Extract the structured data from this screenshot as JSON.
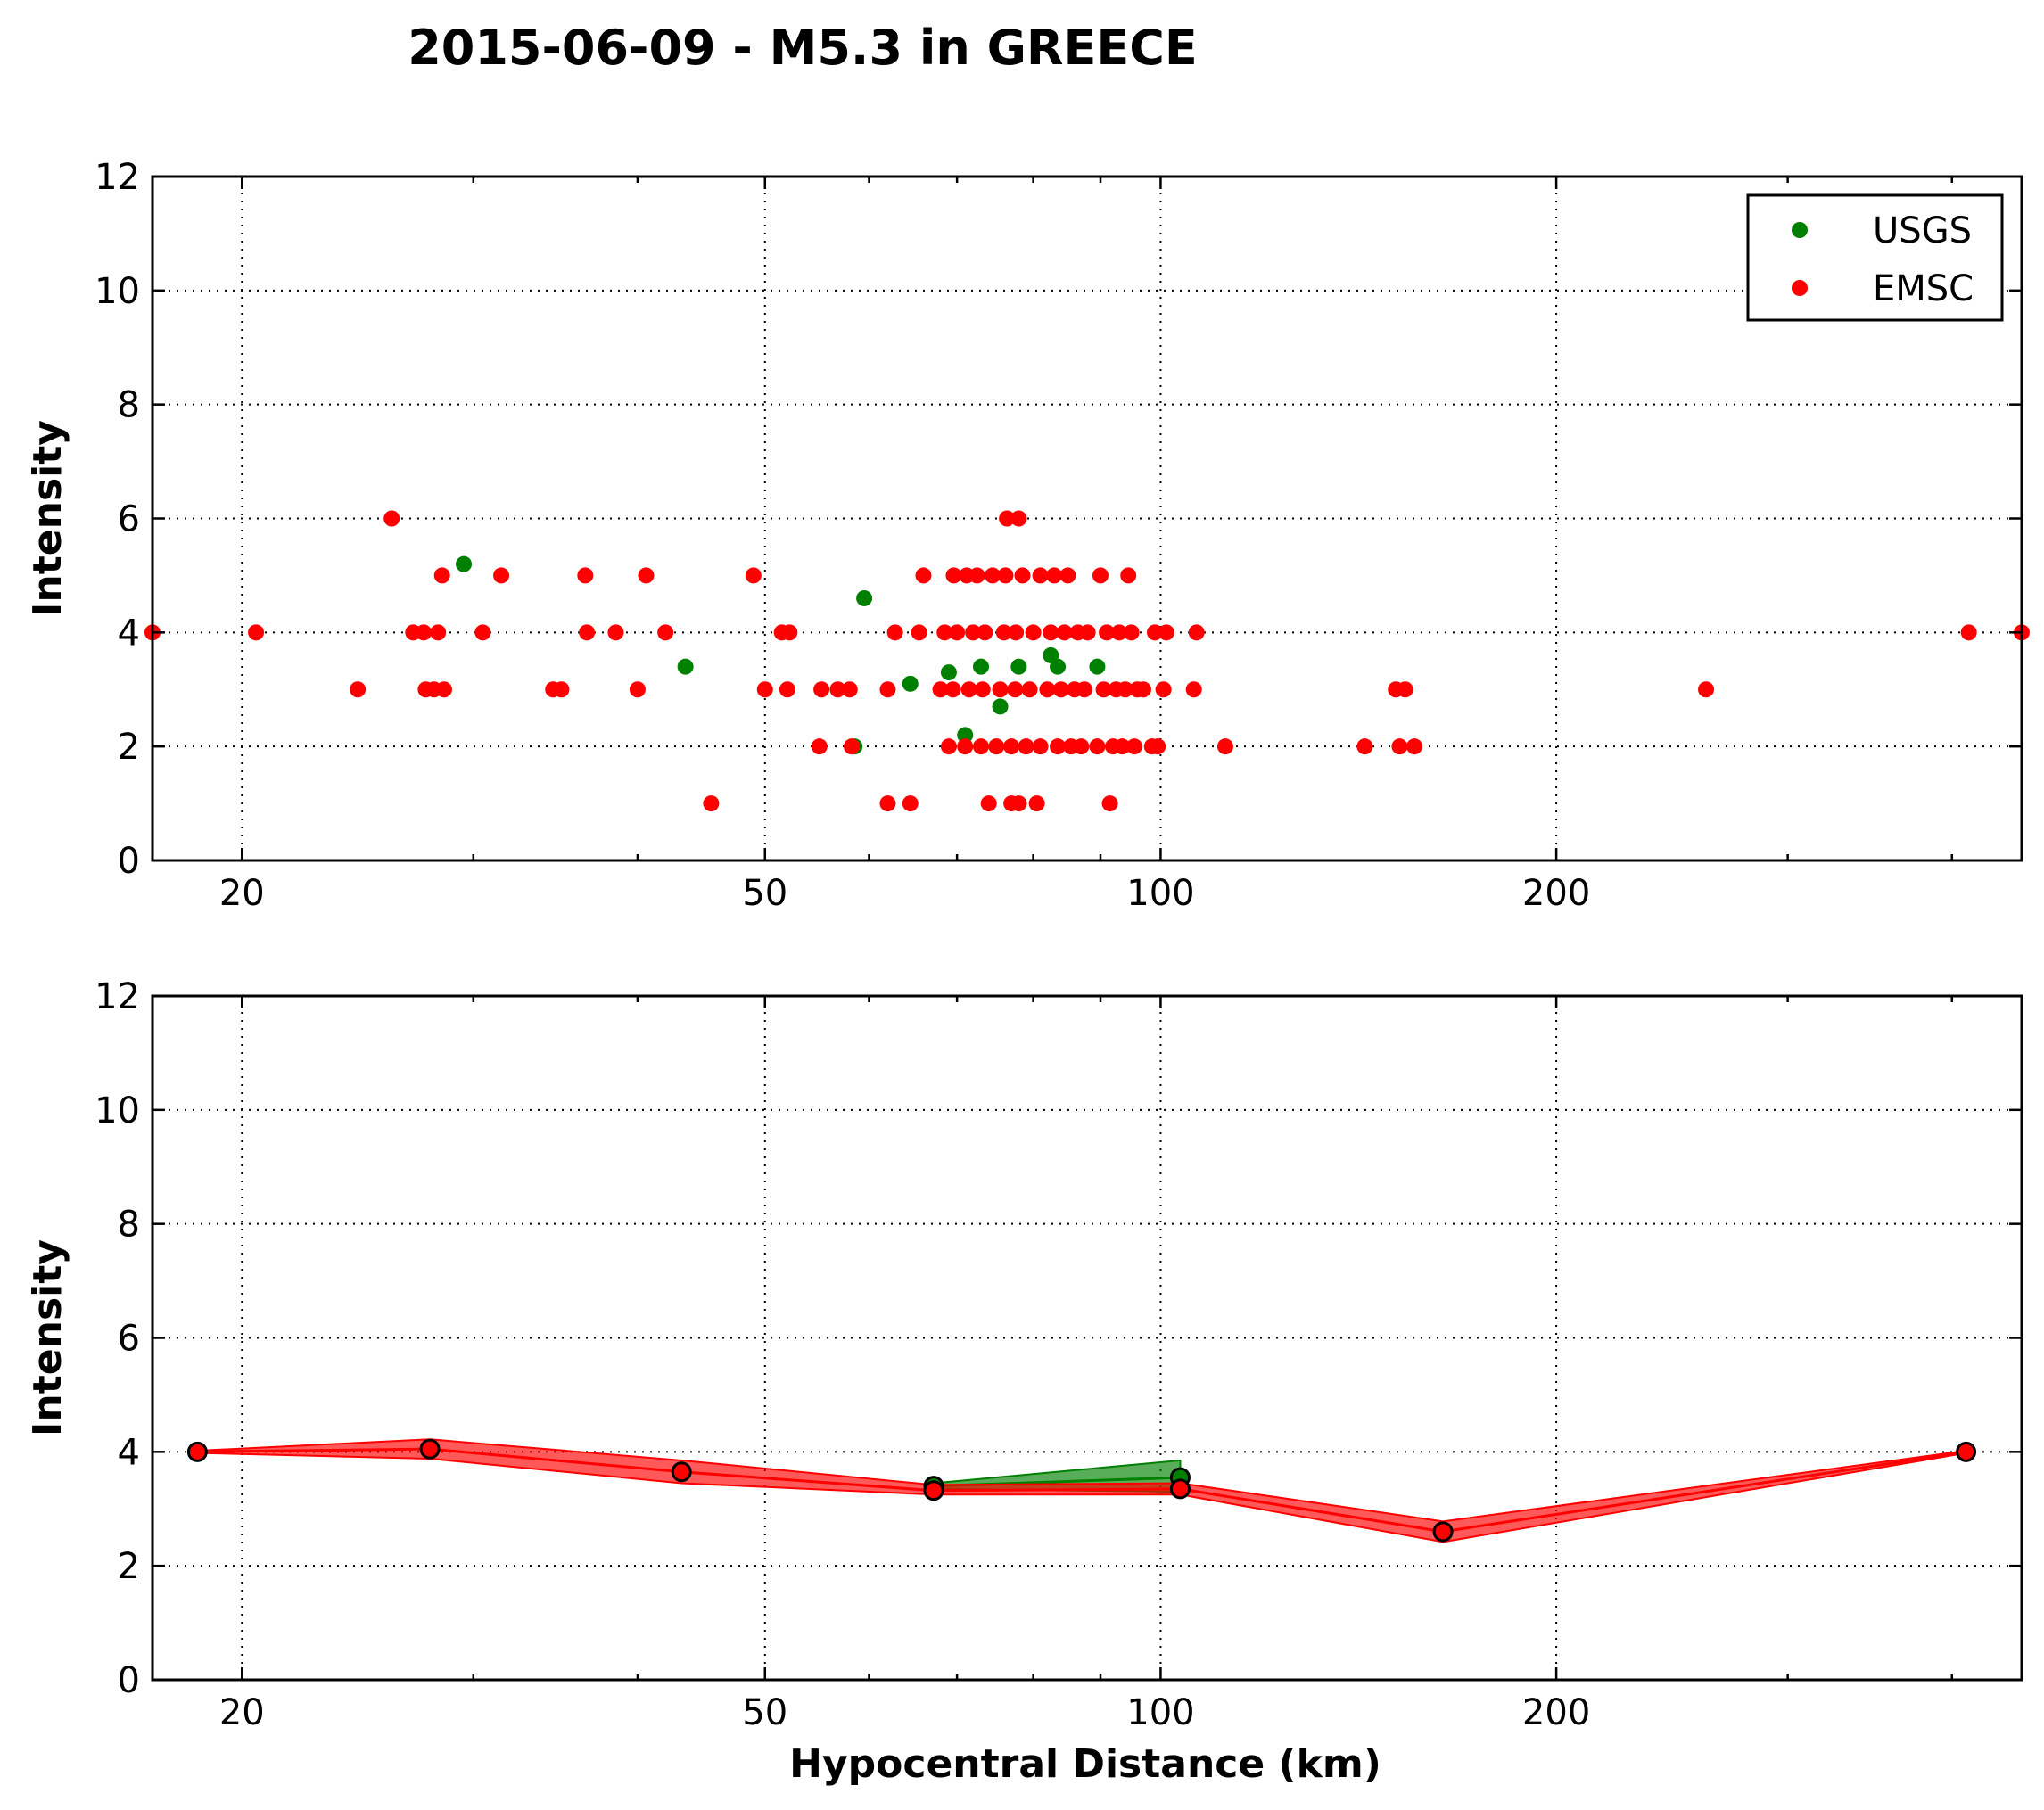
{
  "chart_data": {
    "title": "2015-06-09 - M5.3 in GREECE",
    "x_scale": "log",
    "xlim": [
      17.1,
      452
    ],
    "x_ticks": [
      20,
      50,
      100,
      200
    ],
    "x_tick_labels": [
      "20",
      "50",
      "100",
      "200"
    ],
    "panels": [
      {
        "type": "scatter",
        "ylabel": "Intensity",
        "xlabel": "",
        "ylim": [
          0,
          12
        ],
        "y_ticks": [
          0,
          2,
          4,
          6,
          8,
          10,
          12
        ],
        "y_tick_labels": [
          "0",
          "2",
          "4",
          "6",
          "8",
          "10",
          "12"
        ],
        "grid": true,
        "legend_position": "top-right",
        "series": [
          {
            "name": "USGS",
            "color": "#008000",
            "points": [
              [
                29.5,
                5.2
              ],
              [
                43.5,
                3.4
              ],
              [
                58.5,
                2.0
              ],
              [
                59.5,
                4.6
              ],
              [
                64.5,
                3.1
              ],
              [
                69,
                3.3
              ],
              [
                71,
                2.2
              ],
              [
                73,
                3.4
              ],
              [
                75.5,
                2.7
              ],
              [
                78,
                3.4
              ],
              [
                82.5,
                3.6
              ],
              [
                83.5,
                3.4
              ],
              [
                89.5,
                3.4
              ]
            ]
          },
          {
            "name": "EMSC",
            "color": "#ff0000",
            "points": [
              [
                17.1,
                4
              ],
              [
                20.5,
                4
              ],
              [
                24.5,
                3
              ],
              [
                26,
                6
              ],
              [
                27,
                4
              ],
              [
                27.5,
                4
              ],
              [
                27.6,
                3
              ],
              [
                28,
                3
              ],
              [
                28.2,
                4
              ],
              [
                28.4,
                5
              ],
              [
                28.5,
                3
              ],
              [
                30.5,
                4
              ],
              [
                31.5,
                5
              ],
              [
                34.5,
                3
              ],
              [
                35,
                3
              ],
              [
                36.5,
                5
              ],
              [
                36.6,
                4
              ],
              [
                38.5,
                4
              ],
              [
                40,
                3
              ],
              [
                40.6,
                5
              ],
              [
                42,
                4
              ],
              [
                45.5,
                1
              ],
              [
                49,
                5
              ],
              [
                50,
                3
              ],
              [
                51.5,
                4
              ],
              [
                52,
                3
              ],
              [
                52.2,
                4
              ],
              [
                55,
                2
              ],
              [
                55.2,
                3
              ],
              [
                56.8,
                3
              ],
              [
                58,
                3
              ],
              [
                58.2,
                2
              ],
              [
                62,
                1
              ],
              [
                62,
                3
              ],
              [
                62.8,
                4
              ],
              [
                64.5,
                1
              ],
              [
                65.5,
                4
              ],
              [
                66,
                5
              ],
              [
                68,
                3
              ],
              [
                68.5,
                4
              ],
              [
                69,
                2
              ],
              [
                69.5,
                3
              ],
              [
                69.6,
                5
              ],
              [
                70,
                4
              ],
              [
                71,
                2
              ],
              [
                71.2,
                5
              ],
              [
                71.5,
                3
              ],
              [
                72,
                4
              ],
              [
                72.5,
                5
              ],
              [
                73,
                2
              ],
              [
                73.2,
                3
              ],
              [
                73.5,
                4
              ],
              [
                74,
                1
              ],
              [
                74.5,
                5
              ],
              [
                75,
                2
              ],
              [
                75.5,
                3
              ],
              [
                76,
                4
              ],
              [
                76.2,
                5
              ],
              [
                76.4,
                6
              ],
              [
                77,
                1
              ],
              [
                77,
                2
              ],
              [
                77.5,
                3
              ],
              [
                77.6,
                4
              ],
              [
                78,
                6
              ],
              [
                78,
                1
              ],
              [
                78.5,
                5
              ],
              [
                79,
                2
              ],
              [
                79.5,
                3
              ],
              [
                80,
                4
              ],
              [
                80.5,
                1
              ],
              [
                81,
                2
              ],
              [
                81,
                5
              ],
              [
                82,
                3
              ],
              [
                82.5,
                4
              ],
              [
                83,
                5
              ],
              [
                83.5,
                2
              ],
              [
                84,
                3
              ],
              [
                84.5,
                4
              ],
              [
                85,
                5
              ],
              [
                85.5,
                2
              ],
              [
                86,
                3
              ],
              [
                86.5,
                4
              ],
              [
                87,
                2
              ],
              [
                87.5,
                3
              ],
              [
                88,
                4
              ],
              [
                89.5,
                2
              ],
              [
                90,
                5
              ],
              [
                90.5,
                3
              ],
              [
                91,
                4
              ],
              [
                91.5,
                1
              ],
              [
                92,
                2
              ],
              [
                92.5,
                3
              ],
              [
                93,
                4
              ],
              [
                93.5,
                2
              ],
              [
                94,
                3
              ],
              [
                94.5,
                5
              ],
              [
                95,
                4
              ],
              [
                95.5,
                2
              ],
              [
                96,
                3
              ],
              [
                97,
                3
              ],
              [
                98.5,
                2
              ],
              [
                99,
                4
              ],
              [
                99.5,
                2
              ],
              [
                100.5,
                3
              ],
              [
                101,
                4
              ],
              [
                106,
                3
              ],
              [
                106.5,
                4
              ],
              [
                112,
                2
              ],
              [
                143,
                2
              ],
              [
                151,
                3
              ],
              [
                152,
                2
              ],
              [
                153.5,
                3
              ],
              [
                156,
                2
              ],
              [
                260,
                3
              ],
              [
                412,
                4
              ],
              [
                452,
                4
              ]
            ]
          }
        ]
      },
      {
        "type": "line",
        "ylabel": "Intensity",
        "xlabel": "Hypocentral Distance (km)",
        "ylim": [
          0,
          12
        ],
        "y_ticks": [
          0,
          2,
          4,
          6,
          8,
          10,
          12
        ],
        "y_tick_labels": [
          "0",
          "2",
          "4",
          "6",
          "8",
          "10",
          "12"
        ],
        "grid": true,
        "series": [
          {
            "name": "USGS",
            "color": "#008000",
            "points": [
              [
                67.2,
                3.4
              ],
              [
                103.5,
                3.55
              ]
            ],
            "band_lower": [
              3.35,
              3.3
            ],
            "band_upper": [
              3.45,
              3.85
            ]
          },
          {
            "name": "EMSC",
            "color": "#ff0000",
            "points": [
              [
                18.5,
                4.0
              ],
              [
                27.8,
                4.05
              ],
              [
                43.2,
                3.65
              ],
              [
                67.2,
                3.32
              ],
              [
                103.5,
                3.35
              ],
              [
                164,
                2.6
              ],
              [
                410,
                4.0
              ]
            ],
            "band_lower": [
              3.98,
              3.88,
              3.45,
              3.25,
              3.25,
              2.42,
              3.98
            ],
            "band_upper": [
              4.02,
              4.22,
              3.85,
              3.42,
              3.45,
              2.78,
              4.02
            ]
          }
        ]
      }
    ]
  }
}
